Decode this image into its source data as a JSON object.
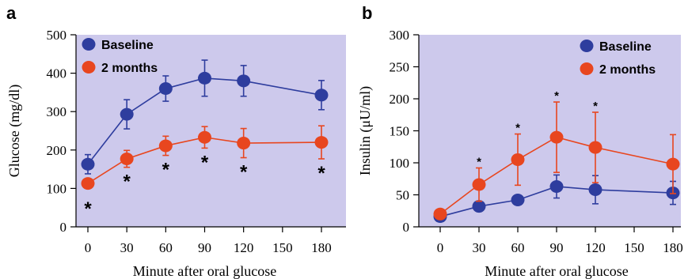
{
  "chart_data": [
    {
      "type": "line",
      "panel": "a",
      "xlabel": "Minute after oral glucose",
      "ylabel": "Glucose (mg/dl)",
      "x": [
        0,
        30,
        60,
        90,
        120,
        150,
        180
      ],
      "xticks": [
        "0",
        "30",
        "60",
        "90",
        "120",
        "150",
        "180"
      ],
      "ylim": [
        0,
        500
      ],
      "yticks": [
        "0",
        "100",
        "200",
        "300",
        "400",
        "500"
      ],
      "background": "#cdc9ec",
      "legend_position": "top-left",
      "series": [
        {
          "name": "Baseline",
          "color": "#2e3d9e",
          "x": [
            0,
            30,
            60,
            90,
            120,
            180
          ],
          "values": [
            163,
            293,
            360,
            387,
            380,
            343
          ],
          "errors": [
            25,
            38,
            33,
            47,
            40,
            38
          ]
        },
        {
          "name": "2 months",
          "color": "#e8461f",
          "x": [
            0,
            30,
            60,
            90,
            120,
            180
          ],
          "values": [
            113,
            177,
            211,
            233,
            218,
            220
          ],
          "errors": [
            12,
            22,
            25,
            28,
            38,
            43
          ]
        }
      ],
      "annotations": [
        {
          "x": 0,
          "text": "*"
        },
        {
          "x": 30,
          "text": "*"
        },
        {
          "x": 60,
          "text": "*"
        },
        {
          "x": 90,
          "text": "*"
        },
        {
          "x": 120,
          "text": "*"
        },
        {
          "x": 180,
          "text": "*"
        }
      ]
    },
    {
      "type": "line",
      "panel": "b",
      "xlabel": "Minute after oral glucose",
      "ylabel": "Insulin (μU/ml)",
      "x": [
        0,
        30,
        60,
        90,
        120,
        150,
        180
      ],
      "xticks": [
        "0",
        "30",
        "60",
        "90",
        "120",
        "150",
        "180"
      ],
      "ylim": [
        0,
        300
      ],
      "yticks": [
        "0",
        "50",
        "100",
        "150",
        "200",
        "250",
        "300"
      ],
      "background": "#cdc9ec",
      "legend_position": "top-right",
      "series": [
        {
          "name": "Baseline",
          "color": "#2e3d9e",
          "x": [
            0,
            30,
            60,
            90,
            120,
            180
          ],
          "values": [
            16,
            32,
            42,
            63,
            58,
            53
          ],
          "errors": [
            5,
            8,
            7,
            18,
            22,
            18
          ]
        },
        {
          "name": "2 months",
          "color": "#e8461f",
          "x": [
            0,
            30,
            60,
            90,
            120,
            180
          ],
          "values": [
            20,
            66,
            105,
            140,
            124,
            98
          ],
          "errors": [
            5,
            26,
            40,
            55,
            55,
            46
          ]
        }
      ],
      "annotations": [
        {
          "x": 30,
          "text": "*"
        },
        {
          "x": 60,
          "text": "*"
        },
        {
          "x": 90,
          "text": "*"
        },
        {
          "x": 120,
          "text": "*"
        }
      ]
    }
  ]
}
